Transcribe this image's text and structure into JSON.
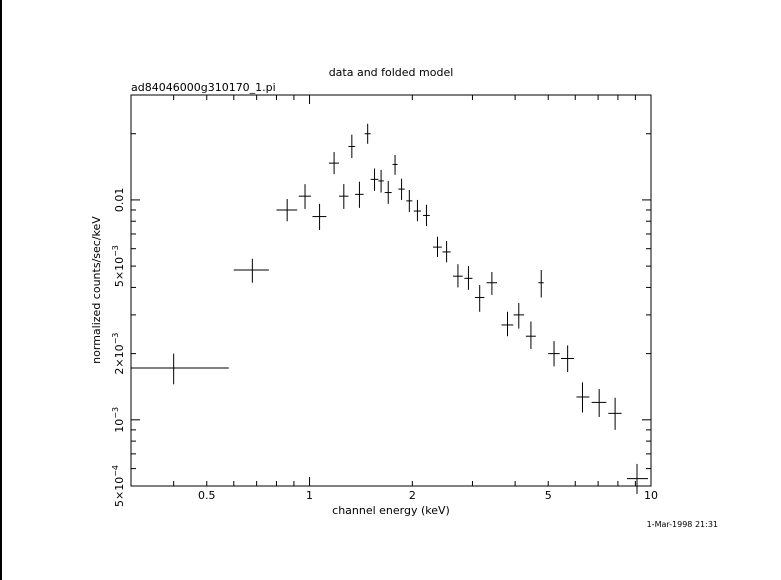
{
  "chart_data": {
    "type": "scatter",
    "title": "data and folded model",
    "subtitle": "ad84046000g310170_1.pi",
    "xlabel": "channel energy (keV)",
    "ylabel": "normalized counts/sec/keV",
    "x_scale": "log",
    "y_scale": "log",
    "xlim": [
      0.3,
      10
    ],
    "ylim": [
      0.0005,
      0.03
    ],
    "x_ticks": [
      {
        "value": 0.5,
        "label": "0.5"
      },
      {
        "value": 1,
        "label": "1"
      },
      {
        "value": 2,
        "label": "2"
      },
      {
        "value": 5,
        "label": "5"
      },
      {
        "value": 10,
        "label": "10"
      }
    ],
    "y_ticks": [
      {
        "value": 0.0005,
        "mant": "5×10",
        "exp": "−4"
      },
      {
        "value": 0.001,
        "mant": "10",
        "exp": "−3"
      },
      {
        "value": 0.002,
        "mant": "2×10",
        "exp": "−3"
      },
      {
        "value": 0.005,
        "mant": "5×10",
        "exp": "−3"
      },
      {
        "value": 0.01,
        "mant": "0.01",
        "exp": ""
      }
    ],
    "grid": false,
    "points": [
      {
        "x": 0.4,
        "xlo": 0.3,
        "xhi": 0.58,
        "y": 0.00172,
        "ylo": 0.00145,
        "yhi": 0.002
      },
      {
        "x": 0.68,
        "xlo": 0.6,
        "xhi": 0.76,
        "y": 0.0048,
        "ylo": 0.0042,
        "yhi": 0.0054
      },
      {
        "x": 0.86,
        "xlo": 0.8,
        "xhi": 0.92,
        "y": 0.009,
        "ylo": 0.008,
        "yhi": 0.0101
      },
      {
        "x": 0.97,
        "xlo": 0.93,
        "xhi": 1.01,
        "y": 0.0104,
        "ylo": 0.0091,
        "yhi": 0.0118
      },
      {
        "x": 1.07,
        "xlo": 1.02,
        "xhi": 1.12,
        "y": 0.0084,
        "ylo": 0.0073,
        "yhi": 0.0096
      },
      {
        "x": 1.18,
        "xlo": 1.14,
        "xhi": 1.22,
        "y": 0.0147,
        "ylo": 0.0131,
        "yhi": 0.0165
      },
      {
        "x": 1.26,
        "xlo": 1.22,
        "xhi": 1.3,
        "y": 0.0104,
        "ylo": 0.0091,
        "yhi": 0.0118
      },
      {
        "x": 1.33,
        "xlo": 1.3,
        "xhi": 1.36,
        "y": 0.0175,
        "ylo": 0.0155,
        "yhi": 0.0198
      },
      {
        "x": 1.4,
        "xlo": 1.36,
        "xhi": 1.44,
        "y": 0.0106,
        "ylo": 0.0092,
        "yhi": 0.0121
      },
      {
        "x": 1.48,
        "xlo": 1.45,
        "xhi": 1.51,
        "y": 0.02,
        "ylo": 0.018,
        "yhi": 0.0222
      },
      {
        "x": 1.55,
        "xlo": 1.51,
        "xhi": 1.59,
        "y": 0.0124,
        "ylo": 0.011,
        "yhi": 0.0139
      },
      {
        "x": 1.62,
        "xlo": 1.59,
        "xhi": 1.65,
        "y": 0.0122,
        "ylo": 0.0108,
        "yhi": 0.0137
      },
      {
        "x": 1.7,
        "xlo": 1.66,
        "xhi": 1.74,
        "y": 0.0108,
        "ylo": 0.0096,
        "yhi": 0.0122
      },
      {
        "x": 1.78,
        "xlo": 1.75,
        "xhi": 1.81,
        "y": 0.0145,
        "ylo": 0.013,
        "yhi": 0.016
      },
      {
        "x": 1.86,
        "xlo": 1.82,
        "xhi": 1.9,
        "y": 0.0112,
        "ylo": 0.01,
        "yhi": 0.0125
      },
      {
        "x": 1.96,
        "xlo": 1.92,
        "xhi": 2.0,
        "y": 0.0099,
        "ylo": 0.0088,
        "yhi": 0.0111
      },
      {
        "x": 2.07,
        "xlo": 2.02,
        "xhi": 2.12,
        "y": 0.0089,
        "ylo": 0.008,
        "yhi": 0.01
      },
      {
        "x": 2.2,
        "xlo": 2.15,
        "xhi": 2.25,
        "y": 0.0085,
        "ylo": 0.0076,
        "yhi": 0.0095
      },
      {
        "x": 2.37,
        "xlo": 2.3,
        "xhi": 2.44,
        "y": 0.0061,
        "ylo": 0.0055,
        "yhi": 0.0068
      },
      {
        "x": 2.52,
        "xlo": 2.45,
        "xhi": 2.59,
        "y": 0.0058,
        "ylo": 0.0052,
        "yhi": 0.0065
      },
      {
        "x": 2.72,
        "xlo": 2.63,
        "xhi": 2.81,
        "y": 0.0045,
        "ylo": 0.004,
        "yhi": 0.0051
      },
      {
        "x": 2.92,
        "xlo": 2.84,
        "xhi": 3.0,
        "y": 0.0044,
        "ylo": 0.0039,
        "yhi": 0.005
      },
      {
        "x": 3.15,
        "xlo": 3.05,
        "xhi": 3.25,
        "y": 0.0036,
        "ylo": 0.0031,
        "yhi": 0.0041
      },
      {
        "x": 3.42,
        "xlo": 3.3,
        "xhi": 3.54,
        "y": 0.0042,
        "ylo": 0.0037,
        "yhi": 0.0047
      },
      {
        "x": 3.8,
        "xlo": 3.65,
        "xhi": 3.95,
        "y": 0.0027,
        "ylo": 0.0024,
        "yhi": 0.0031
      },
      {
        "x": 4.1,
        "xlo": 3.96,
        "xhi": 4.25,
        "y": 0.003,
        "ylo": 0.0026,
        "yhi": 0.0034
      },
      {
        "x": 4.45,
        "xlo": 4.3,
        "xhi": 4.6,
        "y": 0.0024,
        "ylo": 0.0021,
        "yhi": 0.0028
      },
      {
        "x": 4.77,
        "xlo": 4.68,
        "xhi": 4.85,
        "y": 0.0042,
        "ylo": 0.0036,
        "yhi": 0.0048
      },
      {
        "x": 5.2,
        "xlo": 5.0,
        "xhi": 5.4,
        "y": 0.002,
        "ylo": 0.00175,
        "yhi": 0.00228
      },
      {
        "x": 5.7,
        "xlo": 5.45,
        "xhi": 5.95,
        "y": 0.0019,
        "ylo": 0.00165,
        "yhi": 0.00218
      },
      {
        "x": 6.3,
        "xlo": 6.05,
        "xhi": 6.6,
        "y": 0.00127,
        "ylo": 0.00108,
        "yhi": 0.00148
      },
      {
        "x": 7.05,
        "xlo": 6.7,
        "xhi": 7.4,
        "y": 0.0012,
        "ylo": 0.00103,
        "yhi": 0.00138
      },
      {
        "x": 7.85,
        "xlo": 7.5,
        "xhi": 8.2,
        "y": 0.00107,
        "ylo": 0.0009,
        "yhi": 0.00126
      },
      {
        "x": 9.1,
        "xlo": 8.5,
        "xhi": 9.8,
        "y": 0.00054,
        "ylo": 0.00046,
        "yhi": 0.00063
      }
    ],
    "timestamp": "1-Mar-1998 21:31"
  }
}
